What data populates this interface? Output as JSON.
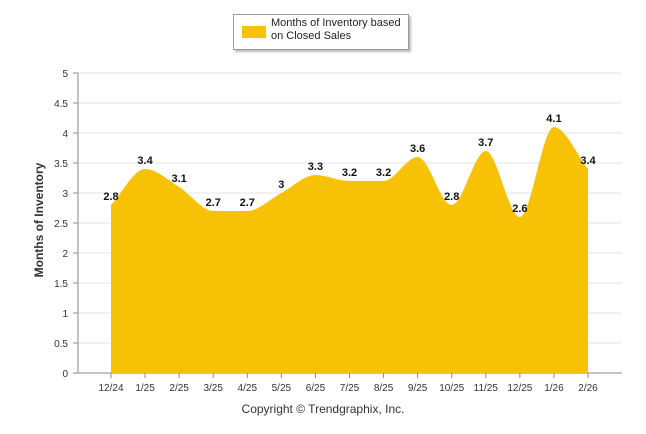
{
  "chart_data": {
    "type": "area",
    "categories": [
      "12/24",
      "1/25",
      "2/25",
      "3/25",
      "4/25",
      "5/25",
      "6/25",
      "7/25",
      "8/25",
      "9/25",
      "10/25",
      "11/25",
      "12/25",
      "1/26",
      "2/26"
    ],
    "series": [
      {
        "name": "Months of Inventory based on Closed Sales",
        "values": [
          2.8,
          3.4,
          3.1,
          2.7,
          2.7,
          3,
          3.3,
          3.2,
          3.2,
          3.6,
          2.8,
          3.7,
          2.6,
          4.1,
          3.4
        ],
        "color": "#F7C205"
      }
    ],
    "value_labels": [
      "2.8",
      "3.4",
      "3.1",
      "2.7",
      "2.7",
      "3",
      "3.3",
      "3.2",
      "3.2",
      "3.6",
      "2.8",
      "3.7",
      "2.6",
      "4.1",
      "3.4"
    ],
    "ylabel": "Months of Inventory",
    "xlabel": "",
    "ylim": [
      0,
      5
    ],
    "yticks": [
      "0",
      "0.5",
      "1",
      "1.5",
      "2",
      "2.5",
      "3",
      "3.5",
      "4",
      "4.5",
      "5"
    ],
    "grid": true,
    "legend_position": "top-center"
  },
  "legend": {
    "label": "Months of Inventory based on Closed Sales"
  },
  "copyright": "Copyright © Trendgraphix, Inc."
}
